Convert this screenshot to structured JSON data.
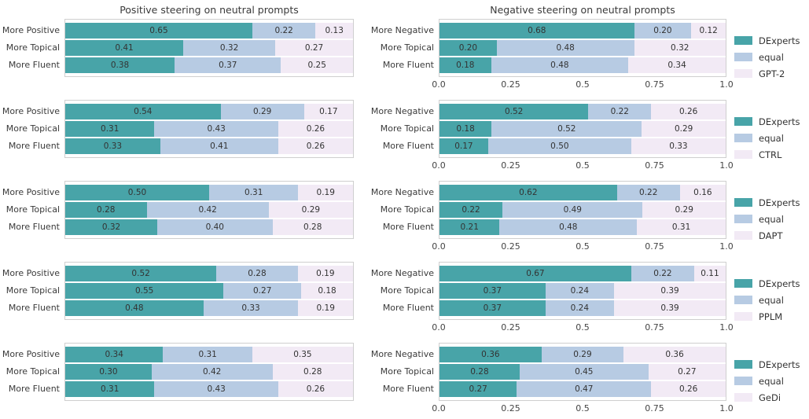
{
  "figure": {
    "background": "#ffffff",
    "column_titles": [
      "Positive steering on neutral prompts",
      "Negative steering on neutral prompts"
    ]
  },
  "chart_data": {
    "type": "bar",
    "stacked": true,
    "orientation": "horizontal",
    "grid": false,
    "xlim": [
      0,
      1
    ],
    "x_ticks": [
      "0.0",
      "0.25",
      "0.5",
      "0.75",
      "1.0"
    ],
    "x_ticks_shown_on": "right-column-charts-only",
    "titles_shown_on": "top-row-only",
    "column_titles": [
      "Positive steering on neutral prompts",
      "Negative steering on neutral prompts"
    ],
    "segment_names_pattern": [
      "DExperts",
      "equal",
      "baseline-model"
    ],
    "segment_colors": [
      "#48a4a8",
      "#b7cbe3",
      "#f2eaf5"
    ],
    "legend_position": "right-of-each-row",
    "legend_fixed_labels": [
      "DExperts",
      "equal"
    ],
    "rows": [
      {
        "baseline": "GPT-2",
        "left": {
          "categories": [
            "More Positive",
            "More Topical",
            "More Fluent"
          ],
          "values": [
            [
              0.65,
              0.22,
              0.13
            ],
            [
              0.41,
              0.32,
              0.27
            ],
            [
              0.38,
              0.37,
              0.25
            ]
          ]
        },
        "right": {
          "categories": [
            "More Negative",
            "More Topical",
            "More Fluent"
          ],
          "values": [
            [
              0.68,
              0.2,
              0.12
            ],
            [
              0.2,
              0.48,
              0.32
            ],
            [
              0.18,
              0.48,
              0.34
            ]
          ]
        }
      },
      {
        "baseline": "CTRL",
        "left": {
          "categories": [
            "More Positive",
            "More Topical",
            "More Fluent"
          ],
          "values": [
            [
              0.54,
              0.29,
              0.17
            ],
            [
              0.31,
              0.43,
              0.26
            ],
            [
              0.33,
              0.41,
              0.26
            ]
          ]
        },
        "right": {
          "categories": [
            "More Negative",
            "More Topical",
            "More Fluent"
          ],
          "values": [
            [
              0.52,
              0.22,
              0.26
            ],
            [
              0.18,
              0.52,
              0.29
            ],
            [
              0.17,
              0.5,
              0.33
            ]
          ]
        }
      },
      {
        "baseline": "DAPT",
        "left": {
          "categories": [
            "More Positive",
            "More Topical",
            "More Fluent"
          ],
          "values": [
            [
              0.5,
              0.31,
              0.19
            ],
            [
              0.28,
              0.42,
              0.29
            ],
            [
              0.32,
              0.4,
              0.28
            ]
          ]
        },
        "right": {
          "categories": [
            "More Negative",
            "More Topical",
            "More Fluent"
          ],
          "values": [
            [
              0.62,
              0.22,
              0.16
            ],
            [
              0.22,
              0.49,
              0.29
            ],
            [
              0.21,
              0.48,
              0.31
            ]
          ]
        }
      },
      {
        "baseline": "PPLM",
        "left": {
          "categories": [
            "More Positive",
            "More Topical",
            "More Fluent"
          ],
          "values": [
            [
              0.52,
              0.28,
              0.19
            ],
            [
              0.55,
              0.27,
              0.18
            ],
            [
              0.48,
              0.33,
              0.19
            ]
          ]
        },
        "right": {
          "categories": [
            "More Negative",
            "More Topical",
            "More Fluent"
          ],
          "values": [
            [
              0.67,
              0.22,
              0.11
            ],
            [
              0.37,
              0.24,
              0.39
            ],
            [
              0.37,
              0.24,
              0.39
            ]
          ]
        }
      },
      {
        "baseline": "GeDi",
        "left": {
          "categories": [
            "More Positive",
            "More Topical",
            "More Fluent"
          ],
          "values": [
            [
              0.34,
              0.31,
              0.35
            ],
            [
              0.3,
              0.42,
              0.28
            ],
            [
              0.31,
              0.43,
              0.26
            ]
          ]
        },
        "right": {
          "categories": [
            "More Negative",
            "More Topical",
            "More Fluent"
          ],
          "values": [
            [
              0.36,
              0.29,
              0.36
            ],
            [
              0.28,
              0.45,
              0.27
            ],
            [
              0.27,
              0.47,
              0.26
            ]
          ]
        }
      }
    ]
  }
}
